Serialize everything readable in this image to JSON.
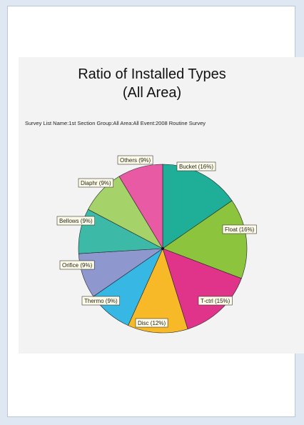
{
  "chart_data": {
    "type": "pie",
    "title": "Ratio of Installed Types",
    "title_line2": "(All Area)",
    "subtitle": "Survey List Name:1st Section  Group:All  Area:All  Event:2008  Routine Survey",
    "slices": [
      {
        "label": "Bucket (16%)",
        "value": 16,
        "color": "#1fae98"
      },
      {
        "label": "Float (16%)",
        "value": 16,
        "color": "#8cc43d"
      },
      {
        "label": "T-ctrl (15%)",
        "value": 15,
        "color": "#e0338a"
      },
      {
        "label": "Disc (12%)",
        "value": 12,
        "color": "#f7b928"
      },
      {
        "label": "Thermo (9%)",
        "value": 9,
        "color": "#36b7e4"
      },
      {
        "label": "Orifice (9%)",
        "value": 9,
        "color": "#8e98cf"
      },
      {
        "label": "Bellows (9%)",
        "value": 9,
        "color": "#3dbaa7"
      },
      {
        "label": "Diaphr (9%)",
        "value": 9,
        "color": "#a5d36a"
      },
      {
        "label": "Others (9%)",
        "value": 9,
        "color": "#e95aa5"
      }
    ],
    "start": "12 o'clock",
    "direction": "clockwise",
    "label_box_color": "#fffde7"
  }
}
